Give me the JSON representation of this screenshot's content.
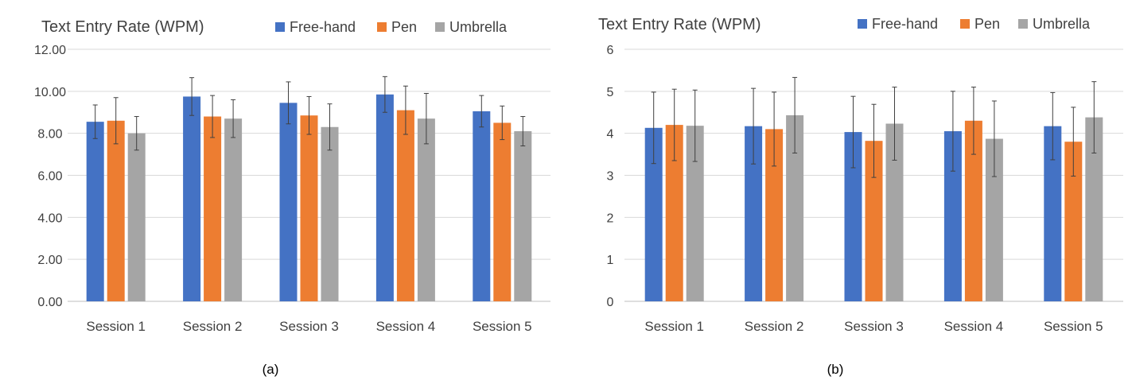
{
  "chart_data": [
    {
      "type": "bar",
      "title": "Text Entry Rate (WPM)",
      "caption": "(a)",
      "categories": [
        "Session 1",
        "Session 2",
        "Session 3",
        "Session 4",
        "Session 5"
      ],
      "ylim": [
        0,
        12
      ],
      "yticks": [
        "0.00",
        "2.00",
        "4.00",
        "6.00",
        "8.00",
        "10.00",
        "12.00"
      ],
      "grid": true,
      "legend_position": "top-right",
      "series": [
        {
          "name": "Free-hand",
          "color": "#4472c4",
          "values": [
            8.55,
            9.75,
            9.45,
            9.85,
            9.05
          ],
          "errors": [
            0.8,
            0.9,
            1.0,
            0.85,
            0.75
          ]
        },
        {
          "name": "Pen",
          "color": "#ed7d31",
          "values": [
            8.6,
            8.8,
            8.85,
            9.1,
            8.5
          ],
          "errors": [
            1.1,
            1.0,
            0.9,
            1.15,
            0.8
          ]
        },
        {
          "name": "Umbrella",
          "color": "#a5a5a5",
          "values": [
            8.0,
            8.7,
            8.3,
            8.7,
            8.1
          ],
          "errors": [
            0.8,
            0.9,
            1.1,
            1.2,
            0.7
          ]
        }
      ]
    },
    {
      "type": "bar",
      "title": "Text Entry Rate (WPM)",
      "caption": "(b)",
      "categories": [
        "Session 1",
        "Session 2",
        "Session 3",
        "Session 4",
        "Session 5"
      ],
      "ylim": [
        0,
        6
      ],
      "yticks": [
        "0",
        "1",
        "2",
        "3",
        "4",
        "5",
        "6"
      ],
      "grid": true,
      "legend_position": "top-right",
      "series": [
        {
          "name": "Free-hand",
          "color": "#4472c4",
          "values": [
            4.13,
            4.17,
            4.03,
            4.05,
            4.17
          ],
          "errors": [
            0.85,
            0.9,
            0.85,
            0.95,
            0.8
          ]
        },
        {
          "name": "Pen",
          "color": "#ed7d31",
          "values": [
            4.2,
            4.1,
            3.82,
            4.3,
            3.8
          ],
          "errors": [
            0.85,
            0.88,
            0.87,
            0.8,
            0.82
          ]
        },
        {
          "name": "Umbrella",
          "color": "#a5a5a5",
          "values": [
            4.18,
            4.43,
            4.23,
            3.87,
            4.38
          ],
          "errors": [
            0.85,
            0.9,
            0.87,
            0.9,
            0.85
          ]
        }
      ]
    }
  ]
}
